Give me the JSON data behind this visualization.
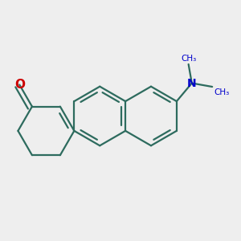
{
  "bg_color": "#eeeeee",
  "bond_color": "#2d6b5e",
  "oxygen_color": "#cc0000",
  "nitrogen_color": "#0000cc",
  "line_width": 1.6,
  "figsize": [
    3.0,
    3.0
  ],
  "dpi": 100,
  "xlim": [
    -2.5,
    5.5
  ],
  "ylim": [
    -2.8,
    2.8
  ]
}
